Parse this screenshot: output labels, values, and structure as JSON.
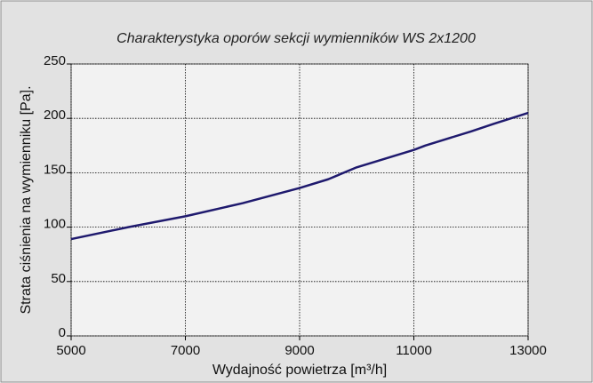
{
  "chart_data": {
    "type": "line",
    "title": "Charakterystyka oporów sekcji wymienników WS 2x1200",
    "x_label": "Wydajność powietrza [m³/h]",
    "y_label": "Strata ciśnienia na wymienniku [Pa].",
    "x": [
      5000,
      6000,
      7000,
      8000,
      9000,
      9500,
      10000,
      11000,
      11200,
      12000,
      12400,
      13000
    ],
    "series": [
      {
        "name": "WS 2x1200",
        "color": "#1f1a6e",
        "values": [
          89,
          100,
          110,
          122,
          136,
          144,
          155,
          171,
          175,
          188,
          195,
          205
        ]
      }
    ],
    "xlim": [
      5000,
      13000
    ],
    "xticks": [
      5000,
      7000,
      9000,
      11000,
      13000
    ],
    "ylim": [
      0,
      250
    ],
    "yticks": [
      0,
      50,
      100,
      150,
      200,
      250
    ],
    "grid": true
  }
}
